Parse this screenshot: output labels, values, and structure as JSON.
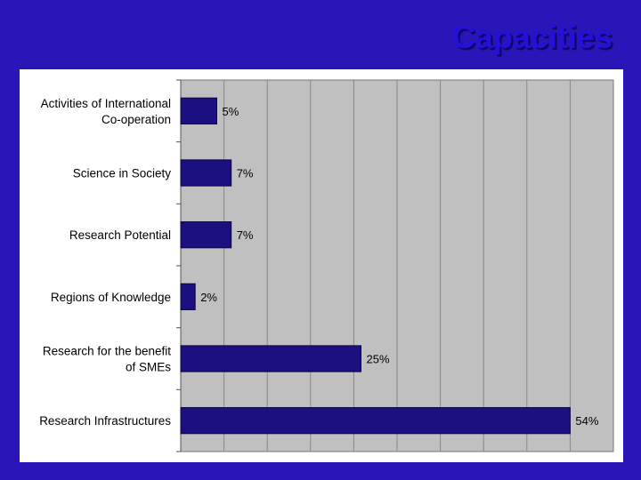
{
  "slide": {
    "title": "Capacities"
  },
  "chart_data": {
    "type": "bar",
    "orientation": "horizontal",
    "title": "",
    "xlabel": "",
    "ylabel": "",
    "categories": [
      [
        "Activities of International",
        "Co-operation"
      ],
      [
        "Science in Society"
      ],
      [
        "Research Potential"
      ],
      [
        "Regions of Knowledge"
      ],
      [
        "Research for the benefit",
        "of SMEs"
      ],
      [
        "Research Infrastructures"
      ]
    ],
    "values": [
      5,
      7,
      7,
      2,
      25,
      54
    ],
    "value_labels": [
      "5%",
      "7%",
      "7%",
      "2%",
      "25%",
      "54%"
    ],
    "xlim": [
      0,
      60
    ],
    "grid": true,
    "colors": {
      "bar": "#1c0f80",
      "plot_background": "#c0c0c0",
      "gridline": "#888888"
    }
  }
}
